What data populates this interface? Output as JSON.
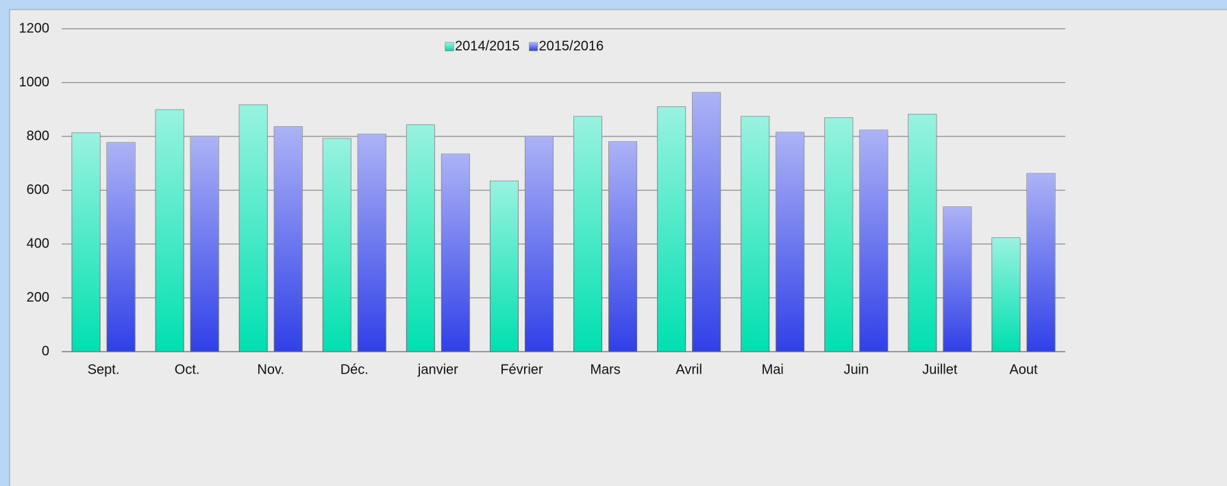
{
  "chart_data": {
    "type": "bar",
    "categories": [
      "Sept.",
      "Oct.",
      "Nov.",
      "Déc.",
      "janvier",
      "Février",
      "Mars",
      "Avril",
      "Mai",
      "Juin",
      "Juillet",
      "Aout"
    ],
    "series": [
      {
        "name": "2014/2015",
        "color": "#00e0b0",
        "values": [
          813,
          899,
          917,
          792,
          843,
          634,
          874,
          910,
          874,
          869,
          882,
          423
        ]
      },
      {
        "name": "2015/2016",
        "color": "#3040e8",
        "values": [
          777,
          800,
          836,
          808,
          734,
          800,
          780,
          963,
          815,
          823,
          538,
          662
        ]
      }
    ],
    "ylim": [
      0,
      1200
    ],
    "yticks": [
      0,
      200,
      400,
      600,
      800,
      1000,
      1200
    ],
    "grid": true,
    "legend": "top"
  }
}
